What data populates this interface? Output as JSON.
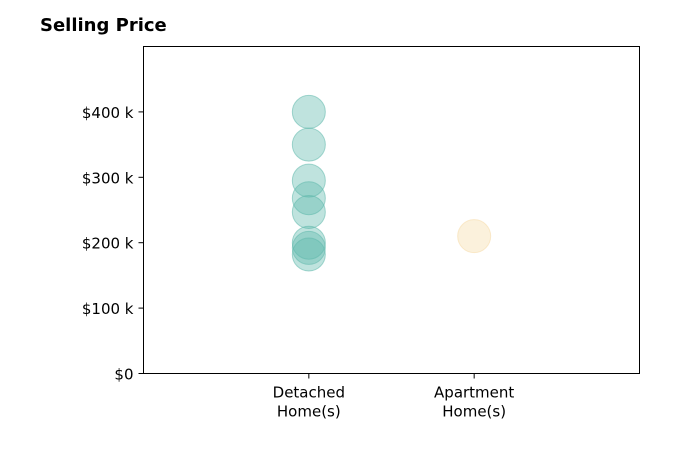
{
  "chart_data": {
    "type": "scatter",
    "title": "Selling Price",
    "xlabel": "",
    "ylabel": "",
    "categories": [
      "Detached\nHome(s)",
      "Apartment\nHome(s)"
    ],
    "xlim": [
      0,
      3
    ],
    "ylim": [
      0,
      500000
    ],
    "yticks": [
      0,
      100000,
      200000,
      300000,
      400000
    ],
    "ytick_labels": [
      "$0",
      "$100 k",
      "$200 k",
      "$300 k",
      "$400 k"
    ],
    "grid": false,
    "series": [
      {
        "category": "Detached\nHome(s)",
        "color": "#5fb8ac",
        "values": [
          400000,
          350000,
          295000,
          268000,
          247000,
          200000,
          192000,
          182000
        ]
      },
      {
        "category": "Apartment\nHome(s)",
        "color": "#f5dba8",
        "values": [
          210000
        ]
      }
    ]
  }
}
